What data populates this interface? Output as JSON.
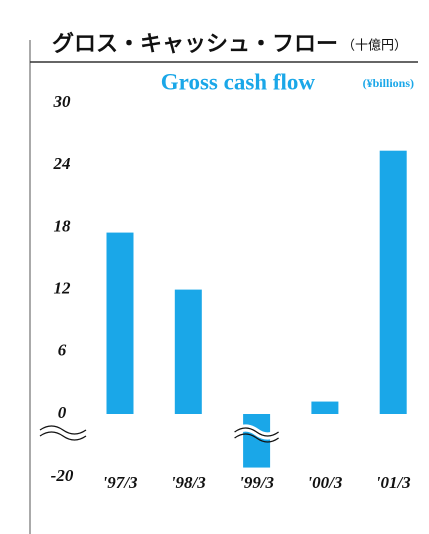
{
  "chart_data": {
    "type": "bar",
    "title": "グロス・キャッシュ・フロー",
    "title_unit": "（十億円）",
    "subtitle": "Gross cash flow",
    "unit": "(¥billions)",
    "categories": [
      "'97/3",
      "'98/3",
      "'99/3",
      "'00/3",
      "'01/3"
    ],
    "values": [
      17.5,
      12,
      -17,
      1.2,
      25.4
    ],
    "color": "#1aa7e8",
    "ylim": [
      -20,
      30
    ],
    "yticks": [
      -20,
      0,
      6,
      12,
      18,
      24,
      30
    ],
    "axis_break": true
  }
}
